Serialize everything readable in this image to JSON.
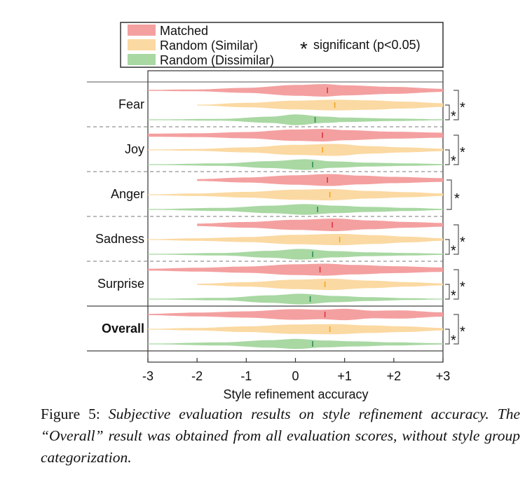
{
  "chart_data": {
    "type": "violin",
    "xlabel": "Style refinement accuracy",
    "xlim": [
      -3,
      3
    ],
    "xticks": [
      "-3",
      "-2",
      "-1",
      "0",
      "+1",
      "+2",
      "+3"
    ],
    "xtick_values": [
      -3,
      -2,
      -1,
      0,
      1,
      2,
      3
    ],
    "legend": {
      "entries": [
        {
          "name": "Matched",
          "color": "#f4a0a0"
        },
        {
          "name": "Random (Similar)",
          "color": "#fbd9a2"
        },
        {
          "name": "Random (Dissimilar)",
          "color": "#a9d8a3"
        }
      ],
      "significance_marker": "*",
      "significance_label": "significant (p<0.05)",
      "placement": "top"
    },
    "groups": [
      {
        "label": "Fear",
        "bold": false,
        "series": [
          {
            "name": "Matched",
            "min": -3,
            "max": 3,
            "mean": 0.65,
            "mean_color": "#d9363e",
            "density": [
              [
                -3,
                0.08
              ],
              [
                -2,
                0.15
              ],
              [
                -1,
                0.4
              ],
              [
                0,
                0.85
              ],
              [
                0.6,
                1.0
              ],
              [
                1,
                0.8
              ],
              [
                2,
                0.55
              ],
              [
                3,
                0.25
              ]
            ]
          },
          {
            "name": "Random (Similar)",
            "min": -2,
            "max": 3,
            "mean": 0.8,
            "mean_color": "#f5a623",
            "density": [
              [
                -2,
                0.05
              ],
              [
                -1,
                0.35
              ],
              [
                0,
                0.7
              ],
              [
                0.8,
                0.85
              ],
              [
                1.5,
                0.75
              ],
              [
                2.2,
                0.55
              ],
              [
                3,
                0.3
              ]
            ]
          },
          {
            "name": "Random (Dissimilar)",
            "min": -3,
            "max": 3,
            "mean": 0.4,
            "mean_color": "#2e8b57",
            "density": [
              [
                -3,
                0.05
              ],
              [
                -1.5,
                0.15
              ],
              [
                -0.5,
                0.5
              ],
              [
                0,
                0.85
              ],
              [
                0.6,
                0.5
              ],
              [
                1,
                0.35
              ],
              [
                2,
                0.2
              ],
              [
                3,
                0.08
              ]
            ]
          }
        ],
        "significance": [
          "*",
          "*"
        ]
      },
      {
        "label": "Joy",
        "bold": false,
        "series": [
          {
            "name": "Matched",
            "min": -3,
            "max": 3,
            "mean": 0.55,
            "mean_color": "#d9363e",
            "density": [
              [
                -3,
                0.25
              ],
              [
                -2,
                0.3
              ],
              [
                -1,
                0.5
              ],
              [
                0,
                0.9
              ],
              [
                0.6,
                1.0
              ],
              [
                1,
                0.8
              ],
              [
                2,
                0.55
              ],
              [
                3,
                0.4
              ]
            ]
          },
          {
            "name": "Random (Similar)",
            "min": -3,
            "max": 3,
            "mean": 0.55,
            "mean_color": "#f5a623",
            "density": [
              [
                -3,
                0.05
              ],
              [
                -2,
                0.15
              ],
              [
                -1,
                0.4
              ],
              [
                0,
                0.8
              ],
              [
                0.8,
                0.95
              ],
              [
                1.5,
                0.6
              ],
              [
                2.2,
                0.4
              ],
              [
                3,
                0.2
              ]
            ]
          },
          {
            "name": "Random (Dissimilar)",
            "min": -3,
            "max": 3,
            "mean": 0.35,
            "mean_color": "#2e8b57",
            "density": [
              [
                -3,
                0.05
              ],
              [
                -1.5,
                0.2
              ],
              [
                -0.5,
                0.55
              ],
              [
                0.2,
                0.85
              ],
              [
                0.8,
                0.5
              ],
              [
                1.5,
                0.3
              ],
              [
                2.3,
                0.2
              ],
              [
                3,
                0.1
              ]
            ]
          }
        ],
        "significance": [
          "*",
          "*"
        ]
      },
      {
        "label": "Anger",
        "bold": false,
        "series": [
          {
            "name": "Matched",
            "min": -2,
            "max": 3,
            "mean": 0.65,
            "mean_color": "#d9363e",
            "density": [
              [
                -2,
                0.15
              ],
              [
                -1,
                0.4
              ],
              [
                0,
                0.75
              ],
              [
                0.7,
                0.95
              ],
              [
                1.3,
                0.7
              ],
              [
                2,
                0.5
              ],
              [
                3,
                0.3
              ]
            ]
          },
          {
            "name": "Random (Similar)",
            "min": -3,
            "max": 3,
            "mean": 0.7,
            "mean_color": "#f5a623",
            "density": [
              [
                -3,
                0.05
              ],
              [
                -2,
                0.2
              ],
              [
                -1,
                0.45
              ],
              [
                0,
                0.8
              ],
              [
                0.7,
                0.9
              ],
              [
                1.5,
                0.6
              ],
              [
                2.3,
                0.4
              ],
              [
                3,
                0.2
              ]
            ]
          },
          {
            "name": "Random (Dissimilar)",
            "min": -3,
            "max": 3,
            "mean": 0.45,
            "mean_color": "#2e8b57",
            "density": [
              [
                -3,
                0.05
              ],
              [
                -1.5,
                0.25
              ],
              [
                -0.5,
                0.6
              ],
              [
                0.2,
                0.85
              ],
              [
                0.8,
                0.6
              ],
              [
                1.5,
                0.4
              ],
              [
                2.3,
                0.25
              ],
              [
                3,
                0.1
              ]
            ]
          }
        ],
        "significance": [
          "*"
        ]
      },
      {
        "label": "Sadness",
        "bold": false,
        "series": [
          {
            "name": "Matched",
            "min": -2,
            "max": 3,
            "mean": 0.75,
            "mean_color": "#d9363e",
            "density": [
              [
                -2,
                0.2
              ],
              [
                -1,
                0.45
              ],
              [
                0,
                0.8
              ],
              [
                0.8,
                1.0
              ],
              [
                1.5,
                0.7
              ],
              [
                2.3,
                0.45
              ],
              [
                3,
                0.3
              ]
            ]
          },
          {
            "name": "Random (Similar)",
            "min": -3,
            "max": 3,
            "mean": 0.9,
            "mean_color": "#f5a623",
            "density": [
              [
                -3,
                0.05
              ],
              [
                -2,
                0.2
              ],
              [
                -1,
                0.4
              ],
              [
                0,
                0.75
              ],
              [
                0.9,
                0.9
              ],
              [
                1.6,
                0.7
              ],
              [
                2.3,
                0.45
              ],
              [
                3,
                0.2
              ]
            ]
          },
          {
            "name": "Random (Dissimilar)",
            "min": -3,
            "max": 3,
            "mean": 0.35,
            "mean_color": "#2e8b57",
            "density": [
              [
                -3,
                0.05
              ],
              [
                -1.5,
                0.2
              ],
              [
                -0.5,
                0.55
              ],
              [
                0.1,
                0.85
              ],
              [
                0.8,
                0.5
              ],
              [
                1.5,
                0.3
              ],
              [
                2.3,
                0.2
              ],
              [
                3,
                0.1
              ]
            ]
          }
        ],
        "significance": [
          "*",
          "*"
        ]
      },
      {
        "label": "Surprise",
        "bold": false,
        "series": [
          {
            "name": "Matched",
            "min": -3,
            "max": 3,
            "mean": 0.5,
            "mean_color": "#d9363e",
            "density": [
              [
                -3,
                0.15
              ],
              [
                -2,
                0.3
              ],
              [
                -1,
                0.5
              ],
              [
                0,
                0.85
              ],
              [
                0.6,
                0.95
              ],
              [
                1.2,
                0.75
              ],
              [
                2,
                0.55
              ],
              [
                3,
                0.35
              ]
            ]
          },
          {
            "name": "Random (Similar)",
            "min": -2,
            "max": 3,
            "mean": 0.6,
            "mean_color": "#f5a623",
            "density": [
              [
                -2,
                0.1
              ],
              [
                -1,
                0.35
              ],
              [
                0,
                0.75
              ],
              [
                0.7,
                0.9
              ],
              [
                1.5,
                0.6
              ],
              [
                2.3,
                0.35
              ],
              [
                3,
                0.15
              ]
            ]
          },
          {
            "name": "Random (Dissimilar)",
            "min": -3,
            "max": 3,
            "mean": 0.3,
            "mean_color": "#2e8b57",
            "density": [
              [
                -3,
                0.05
              ],
              [
                -1.5,
                0.2
              ],
              [
                -0.5,
                0.6
              ],
              [
                0.1,
                0.85
              ],
              [
                0.8,
                0.5
              ],
              [
                1.5,
                0.3
              ],
              [
                2.3,
                0.15
              ],
              [
                3,
                0.05
              ]
            ]
          }
        ],
        "significance": [
          "*",
          "*"
        ]
      },
      {
        "label": "Overall",
        "bold": true,
        "series": [
          {
            "name": "Matched",
            "min": -3,
            "max": 3,
            "mean": 0.6,
            "mean_color": "#d9363e",
            "density": [
              [
                -3,
                0.1
              ],
              [
                -2,
                0.3
              ],
              [
                -1,
                0.5
              ],
              [
                0,
                0.85
              ],
              [
                0.5,
                0.75
              ],
              [
                1,
                0.9
              ],
              [
                1.6,
                0.6
              ],
              [
                2.1,
                0.65
              ],
              [
                3,
                0.35
              ]
            ]
          },
          {
            "name": "Random (Similar)",
            "min": -3,
            "max": 3,
            "mean": 0.7,
            "mean_color": "#f5a623",
            "density": [
              [
                -3,
                0.05
              ],
              [
                -2,
                0.2
              ],
              [
                -1,
                0.45
              ],
              [
                0,
                0.75
              ],
              [
                0.8,
                0.8
              ],
              [
                1.5,
                0.6
              ],
              [
                2.2,
                0.45
              ],
              [
                3,
                0.2
              ]
            ]
          },
          {
            "name": "Random (Dissimilar)",
            "min": -3,
            "max": 3,
            "mean": 0.35,
            "mean_color": "#2e8b57",
            "density": [
              [
                -3,
                0.05
              ],
              [
                -1.5,
                0.25
              ],
              [
                -0.5,
                0.6
              ],
              [
                0,
                0.8
              ],
              [
                0.6,
                0.55
              ],
              [
                1.2,
                0.4
              ],
              [
                2,
                0.25
              ],
              [
                3,
                0.1
              ]
            ]
          }
        ],
        "significance": [
          "*",
          "*"
        ]
      }
    ]
  },
  "caption": {
    "label": "Figure 5:",
    "text": "Subjective evaluation results on style refinement accuracy. The “Overall” result was obtained from all evaluation scores, without style group categorization."
  }
}
